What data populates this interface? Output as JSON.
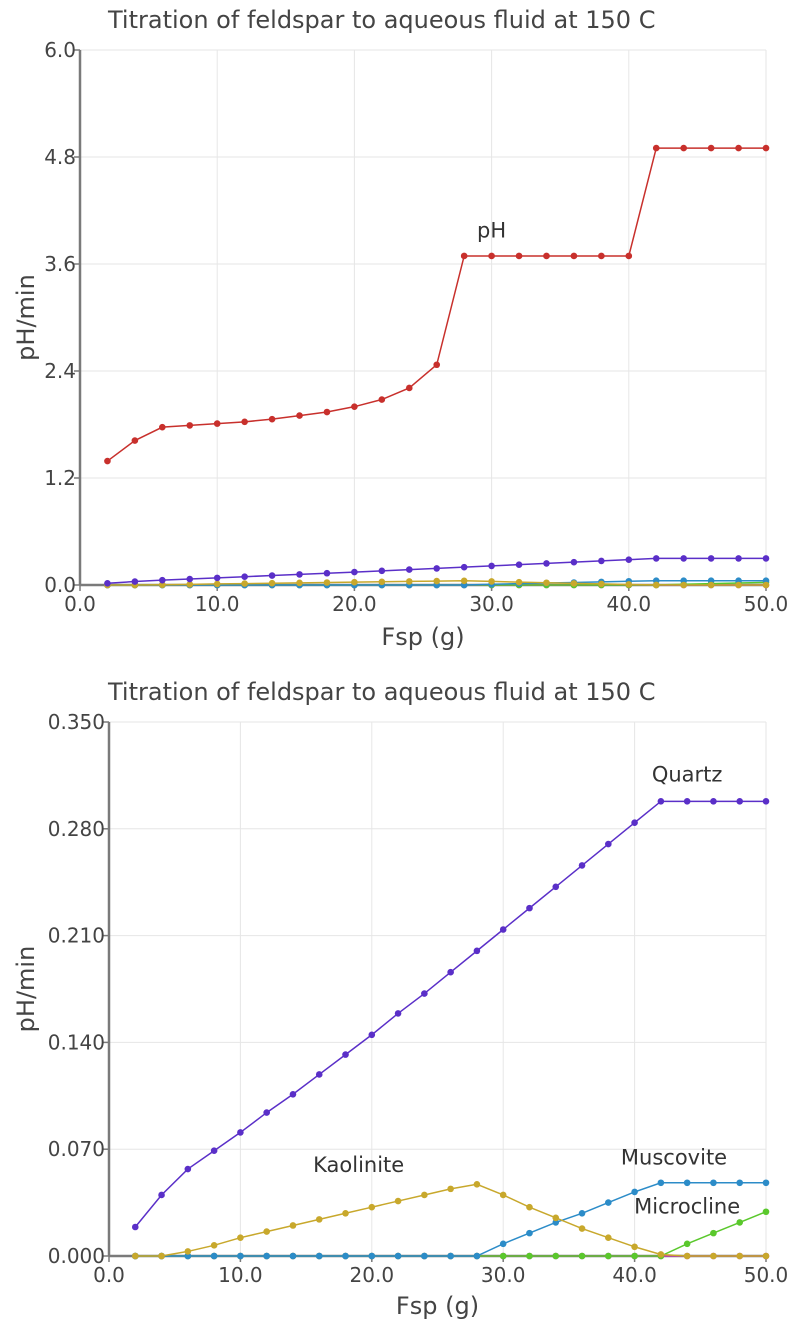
{
  "chart_data": [
    {
      "type": "line",
      "title": "Titration of feldspar to aqueous fluid at 150 C",
      "xlabel": "Fsp (g)",
      "ylabel": "pH/min",
      "xlim": [
        0,
        50
      ],
      "ylim": [
        0,
        6
      ],
      "x_ticks": [
        "0.0",
        "10.0",
        "20.0",
        "30.0",
        "40.0",
        "50.0"
      ],
      "y_ticks": [
        "0.0",
        "1.2",
        "2.4",
        "3.6",
        "4.8",
        "6.0"
      ],
      "grid": true,
      "x": [
        2,
        4,
        6,
        8,
        10,
        12,
        14,
        16,
        18,
        20,
        22,
        24,
        26,
        28,
        30,
        32,
        34,
        36,
        38,
        40,
        42,
        44,
        46,
        48,
        50
      ],
      "series": [
        {
          "color": "#c8302c",
          "values": [
            1.39,
            1.62,
            1.77,
            1.79,
            1.81,
            1.83,
            1.86,
            1.9,
            1.94,
            2.0,
            2.08,
            2.21,
            2.47,
            3.69,
            3.69,
            3.69,
            3.69,
            3.69,
            3.69,
            3.69,
            4.9,
            4.9,
            4.9,
            4.9,
            4.9
          ]
        },
        {
          "color": "#5a2fc8",
          "values": [
            0.019,
            0.039,
            0.054,
            0.067,
            0.08,
            0.093,
            0.106,
            0.119,
            0.132,
            0.145,
            0.159,
            0.173,
            0.186,
            0.2,
            0.214,
            0.228,
            0.242,
            0.256,
            0.27,
            0.284,
            0.298,
            0.298,
            0.298,
            0.298,
            0.298
          ]
        },
        {
          "color": "#c8a82c",
          "values": [
            0.0,
            0.0,
            0.003,
            0.007,
            0.012,
            0.016,
            0.02,
            0.024,
            0.028,
            0.032,
            0.036,
            0.04,
            0.044,
            0.047,
            0.04,
            0.032,
            0.025,
            0.018,
            0.012,
            0.006,
            0.001,
            0.0,
            0.0,
            0.0,
            0.0
          ]
        },
        {
          "color": "#2c8cc8",
          "values": [
            0.0,
            0.0,
            0.0,
            0.0,
            0.0,
            0.0,
            0.0,
            0.0,
            0.0,
            0.0,
            0.0,
            0.0,
            0.0,
            0.0,
            0.008,
            0.015,
            0.022,
            0.028,
            0.035,
            0.042,
            0.048,
            0.048,
            0.048,
            0.048,
            0.048
          ]
        },
        {
          "color": "#5ac82c",
          "values": [
            0.0,
            0.0,
            0.0,
            0.0,
            0.0,
            0.0,
            0.0,
            0.0,
            0.0,
            0.0,
            0.0,
            0.0,
            0.0,
            0.0,
            0.0,
            0.0,
            0.0,
            0.0,
            0.0,
            0.0,
            0.0,
            0.008,
            0.015,
            0.022,
            0.029
          ]
        },
        {
          "color": "#c83cb4",
          "values": [
            0.0,
            0.0,
            0.0,
            0.0,
            0.0,
            0.0,
            0.0,
            0.0,
            0.0,
            0.0,
            0.0,
            0.0,
            0.0,
            0.0,
            0.0,
            0.0,
            0.0,
            0.0,
            0.0,
            0.0,
            0.0,
            0.0,
            0.0,
            0.0,
            0.0
          ]
        }
      ],
      "annotations": [
        {
          "text": "pH",
          "x": 30.0,
          "y": 3.9
        }
      ]
    },
    {
      "type": "line",
      "title": "Titration of feldspar to aqueous fluid at 150 C",
      "xlabel": "Fsp (g)",
      "ylabel": "pH/min",
      "xlim": [
        0,
        50
      ],
      "ylim": [
        0,
        0.35
      ],
      "x_ticks": [
        "0.0",
        "10.0",
        "20.0",
        "30.0",
        "40.0",
        "50.0"
      ],
      "y_ticks": [
        "0.000",
        "0.070",
        "0.140",
        "0.210",
        "0.280",
        "0.350"
      ],
      "grid": true,
      "x": [
        2,
        4,
        6,
        8,
        10,
        12,
        14,
        16,
        18,
        20,
        22,
        24,
        26,
        28,
        30,
        32,
        34,
        36,
        38,
        40,
        42,
        44,
        46,
        48,
        50
      ],
      "series": [
        {
          "color": "#5a2fc8",
          "values": [
            0.019,
            0.04,
            0.057,
            0.069,
            0.081,
            0.094,
            0.106,
            0.119,
            0.132,
            0.145,
            0.159,
            0.172,
            0.186,
            0.2,
            0.214,
            0.228,
            0.242,
            0.256,
            0.27,
            0.284,
            0.298,
            0.298,
            0.298,
            0.298,
            0.298
          ]
        },
        {
          "color": "#c8a82c",
          "values": [
            0.0,
            0.0,
            0.003,
            0.007,
            0.012,
            0.016,
            0.02,
            0.024,
            0.028,
            0.032,
            0.036,
            0.04,
            0.044,
            0.047,
            0.04,
            0.032,
            0.025,
            0.018,
            0.012,
            0.006,
            0.001,
            0.0,
            0.0,
            0.0,
            0.0
          ]
        },
        {
          "color": "#2c8cc8",
          "values": [
            0.0,
            0.0,
            0.0,
            0.0,
            0.0,
            0.0,
            0.0,
            0.0,
            0.0,
            0.0,
            0.0,
            0.0,
            0.0,
            0.0,
            0.008,
            0.015,
            0.022,
            0.028,
            0.035,
            0.042,
            0.048,
            0.048,
            0.048,
            0.048,
            0.048
          ]
        },
        {
          "color": "#5ac82c",
          "values": [
            0.0,
            0.0,
            0.0,
            0.0,
            0.0,
            0.0,
            0.0,
            0.0,
            0.0,
            0.0,
            0.0,
            0.0,
            0.0,
            0.0,
            0.0,
            0.0,
            0.0,
            0.0,
            0.0,
            0.0,
            0.0,
            0.008,
            0.015,
            0.022,
            0.029
          ]
        },
        {
          "color": "#c83cb4",
          "values": [
            0.0,
            0.0,
            0.0,
            0.0,
            0.0,
            0.0,
            0.0,
            0.0,
            0.0,
            0.0,
            0.0,
            0.0,
            0.0,
            0.0,
            0.0,
            0.0,
            0.0,
            0.0,
            0.0,
            0.0,
            0.0,
            0.0,
            0.0,
            0.0,
            0.0
          ]
        }
      ],
      "annotations": [
        {
          "text": "Quartz",
          "x": 44.0,
          "y": 0.311
        },
        {
          "text": "Kaolinite",
          "x": 19.0,
          "y": 0.055
        },
        {
          "text": "Muscovite",
          "x": 43.0,
          "y": 0.06
        },
        {
          "text": "Microcline",
          "x": 44.0,
          "y": 0.028
        }
      ]
    }
  ]
}
